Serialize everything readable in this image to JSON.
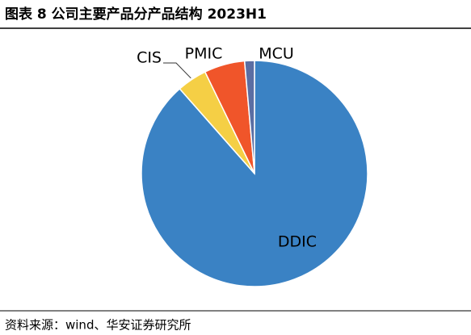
{
  "chart_data": {
    "type": "pie",
    "title": "图表 8 公司主要产品分产品结构 2023H1",
    "categories": [
      "DDIC",
      "CIS",
      "PMIC",
      "MCU"
    ],
    "values": [
      88.5,
      4.3,
      5.8,
      1.4
    ],
    "colors": [
      "#3a82c4",
      "#f5cf45",
      "#f0552a",
      "#5b6ea3"
    ],
    "source": "资料来源：wind、华安证券研究所"
  }
}
